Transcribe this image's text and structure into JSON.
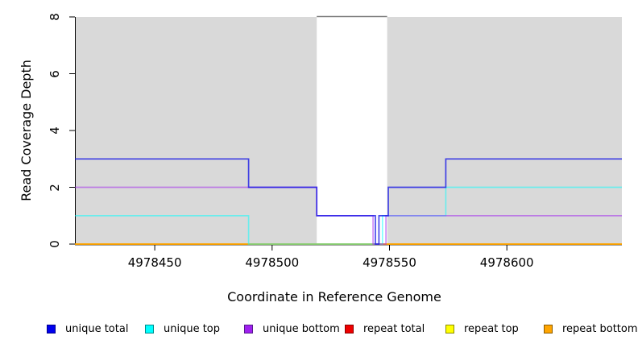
{
  "figure": {
    "kind": "read coverage depth step plot"
  },
  "chart_data": {
    "type": "line",
    "title": "",
    "xlabel": "Coordinate in Reference Genome",
    "ylabel": "Read Coverage Depth",
    "xlim": [
      4978416,
      4978649
    ],
    "ylim": [
      0,
      8
    ],
    "grid": false,
    "x_ticks": [
      {
        "value": 4978450,
        "label": "4978450"
      },
      {
        "value": 4978500,
        "label": "4978500"
      },
      {
        "value": 4978550,
        "label": "4978550"
      },
      {
        "value": 4978600,
        "label": "4978600"
      }
    ],
    "y_ticks": [
      {
        "value": 0,
        "label": "0"
      },
      {
        "value": 2,
        "label": "2"
      },
      {
        "value": 4,
        "label": "4"
      },
      {
        "value": 6,
        "label": "6"
      },
      {
        "value": 8,
        "label": "8"
      }
    ],
    "shaded_regions": [
      [
        4978416,
        4978519
      ],
      [
        4978549,
        4978649
      ]
    ],
    "unshaded_gap": [
      4978519,
      4978549
    ],
    "colors": {
      "shade": "#D9D9D9",
      "gap_top_border": "#808080",
      "axis": "#000000"
    },
    "series": [
      {
        "name": "repeat total",
        "color": "#EE0000",
        "opacity": 0.55,
        "steps": [
          [
            4978416,
            0
          ]
        ]
      },
      {
        "name": "repeat top",
        "color": "#FFFF00",
        "opacity": 0.55,
        "steps": [
          [
            4978416,
            0
          ]
        ]
      },
      {
        "name": "repeat bottom",
        "color": "#FFA500",
        "opacity": 0.95,
        "steps": [
          [
            4978416,
            0
          ]
        ]
      },
      {
        "name": "unique top",
        "color": "#00FFFF",
        "opacity": 0.5,
        "steps": [
          [
            4978416,
            1
          ],
          [
            4978490,
            0
          ],
          [
            4978547,
            1
          ],
          [
            4978574,
            2
          ]
        ]
      },
      {
        "name": "unique bottom",
        "color": "#A020F0",
        "opacity": 0.5,
        "steps": [
          [
            4978416,
            2
          ],
          [
            4978519,
            1
          ],
          [
            4978543,
            0
          ],
          [
            4978548.5,
            1
          ]
        ]
      },
      {
        "name": "unique total",
        "color": "#1414E6",
        "opacity": 0.78,
        "steps": [
          [
            4978416,
            3
          ],
          [
            4978490,
            2
          ],
          [
            4978519,
            1
          ],
          [
            4978544,
            0
          ],
          [
            4978545.5,
            1
          ],
          [
            4978549.5,
            2
          ],
          [
            4978574,
            3
          ]
        ]
      }
    ]
  },
  "legend": {
    "items": [
      {
        "label": "unique total",
        "color": "#0000EE",
        "border": "#00008B"
      },
      {
        "label": "unique top",
        "color": "#00FFFF",
        "border": "#008B8B"
      },
      {
        "label": "unique bottom",
        "color": "#A020F0",
        "border": "#551A8B"
      },
      {
        "label": "repeat total",
        "color": "#EE0000",
        "border": "#8B0000"
      },
      {
        "label": "repeat top",
        "color": "#FFFF00",
        "border": "#8B8B00"
      },
      {
        "label": "repeat bottom",
        "color": "#FFA500",
        "border": "#8B5A00"
      }
    ]
  }
}
